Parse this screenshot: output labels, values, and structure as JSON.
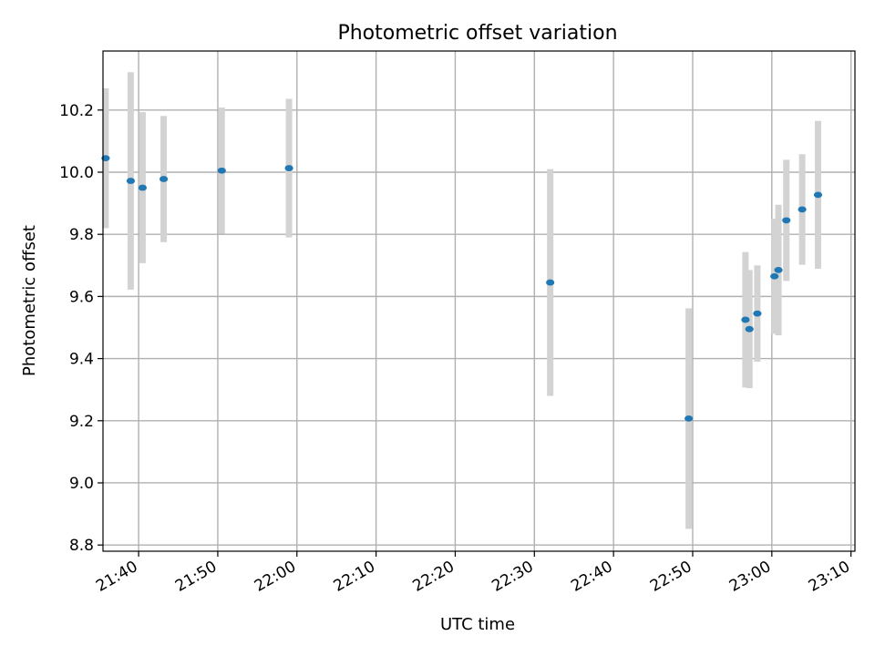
{
  "chart_data": {
    "type": "scatter",
    "title": "Photometric offset variation",
    "xlabel": "UTC time",
    "ylabel": "Photometric offset",
    "x_tick_labels": [
      "21:40",
      "21:50",
      "22:00",
      "22:10",
      "22:20",
      "22:30",
      "22:40",
      "22:50",
      "23:00",
      "23:10"
    ],
    "y_tick_labels": [
      "8.8",
      "9.0",
      "9.2",
      "9.4",
      "9.6",
      "9.8",
      "10.0",
      "10.2"
    ],
    "x_ticks": [
      "21:40",
      "21:50",
      "22:00",
      "22:10",
      "22:20",
      "22:30",
      "22:40",
      "22:50",
      "23:00",
      "23:10"
    ],
    "y_ticks": [
      8.8,
      9.0,
      9.2,
      9.4,
      9.6,
      9.8,
      10.0,
      10.2
    ],
    "xlim": [
      "21:35:30",
      "23:10:30"
    ],
    "ylim": [
      8.78,
      10.39
    ],
    "grid": true,
    "marker_color": "#1f77b4",
    "errorbar_color": "#d3d3d3",
    "points": [
      {
        "x": "21:35:50",
        "y": 10.045,
        "err": 0.225
      },
      {
        "x": "21:39:00",
        "y": 9.972,
        "err": 0.35
      },
      {
        "x": "21:40:30",
        "y": 9.95,
        "err": 0.243
      },
      {
        "x": "21:43:10",
        "y": 9.978,
        "err": 0.203
      },
      {
        "x": "21:50:30",
        "y": 10.005,
        "err": 0.203
      },
      {
        "x": "21:59:00",
        "y": 10.013,
        "err": 0.223
      },
      {
        "x": "22:32:00",
        "y": 9.645,
        "err": 0.365
      },
      {
        "x": "22:49:30",
        "y": 9.207,
        "err": 0.355
      },
      {
        "x": "22:56:40",
        "y": 9.525,
        "err": 0.218
      },
      {
        "x": "22:57:10",
        "y": 9.495,
        "err": 0.19
      },
      {
        "x": "22:58:10",
        "y": 9.545,
        "err": 0.155
      },
      {
        "x": "23:00:20",
        "y": 9.665,
        "err": 0.185
      },
      {
        "x": "23:00:50",
        "y": 9.685,
        "err": 0.21
      },
      {
        "x": "23:01:50",
        "y": 9.845,
        "err": 0.195
      },
      {
        "x": "23:03:50",
        "y": 9.88,
        "err": 0.178
      },
      {
        "x": "23:05:50",
        "y": 9.927,
        "err": 0.238
      }
    ]
  }
}
